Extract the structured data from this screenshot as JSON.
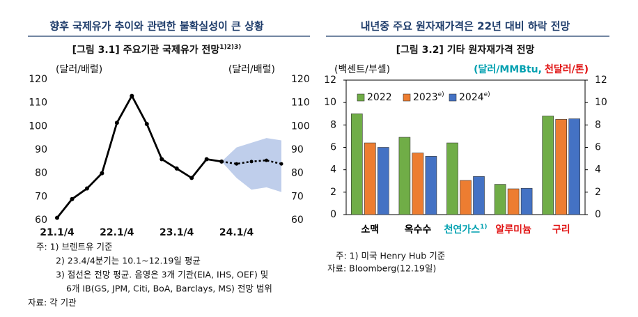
{
  "chart_data": [
    {
      "type": "line",
      "header": "향후 국제유가 추이와 관련한 불확실성이 큰 상황",
      "title": "[그림 3.1] 주요기관 국제유가 전망",
      "title_superscript": "1)2)3)",
      "y_label": "(달러/배럴)",
      "y2_label": "(달러/배럴)",
      "categories": [
        "21.1/4",
        null,
        null,
        null,
        "22.1/4",
        null,
        null,
        null,
        "23.1/4",
        null,
        null,
        null,
        "24.1/4",
        null,
        null,
        null
      ],
      "series": [
        {
          "color": "#000000",
          "dashed": false,
          "values": [
            61,
            69,
            73.5,
            80,
            101.5,
            113,
            101,
            86,
            82,
            78,
            86,
            85,
            null,
            null,
            null,
            null
          ]
        },
        {
          "color": "#000000",
          "dashed": true,
          "values": [
            null,
            null,
            null,
            null,
            null,
            null,
            null,
            null,
            null,
            null,
            null,
            85,
            84,
            85,
            85.5,
            84
          ]
        }
      ],
      "band": {
        "color": "#b4c6e7",
        "upper": [
          null,
          null,
          null,
          null,
          null,
          null,
          null,
          null,
          null,
          null,
          null,
          85,
          91,
          93,
          95,
          94
        ],
        "lower": [
          null,
          null,
          null,
          null,
          null,
          null,
          null,
          null,
          null,
          null,
          null,
          85,
          78,
          73,
          74,
          72
        ]
      },
      "ylim": [
        60,
        120
      ],
      "yticks": [
        60,
        70,
        80,
        90,
        100,
        110,
        120
      ],
      "y2lim": [
        60,
        120
      ],
      "y2ticks": [
        60,
        70,
        80,
        90,
        100,
        110,
        120
      ],
      "notes": [
        "주: 1) 브렌트유 기준",
        "2) 23.4/4분기는 10.1~12.19일 평균",
        "3) 점선은 전망 평균. 음영은 3개 기관(EIA, IHS, OEF) 및",
        "6개 IB(GS, JPM, Citi, BoA, Barclays, MS) 전망 범위",
        "자료: 각 기관"
      ]
    },
    {
      "type": "bar",
      "header": "내년중 주요 원자재가격은 22년 대비 하락 전망",
      "title": "[그림 3.2] 기타 원자재가격 전망",
      "y_label": "(백센트/부셀)",
      "y2_label": [
        {
          "text": "(달러/MMBtu,",
          "color": "#00a0b0"
        },
        {
          "text": "천달러/톤)",
          "color": "#e01010"
        }
      ],
      "categories": [
        "소맥",
        "옥수수",
        "천연가스",
        "알루미늄",
        "구리"
      ],
      "category_superscripts": [
        null,
        null,
        "1)",
        null,
        null
      ],
      "category_colors": [
        "#000000",
        "#000000",
        "#00a0b0",
        "#e01010",
        "#e01010"
      ],
      "series": [
        {
          "name": "2022",
          "color": "#70ad47",
          "values": [
            9.0,
            6.9,
            6.4,
            2.7,
            8.8
          ]
        },
        {
          "name": "2023",
          "name_superscript": "e)",
          "color": "#ed7d31",
          "values": [
            6.4,
            5.5,
            3.05,
            2.3,
            8.5
          ]
        },
        {
          "name": "2024",
          "name_superscript": "e)",
          "color": "#4472c4",
          "values": [
            6.0,
            5.2,
            3.4,
            2.35,
            8.55
          ]
        }
      ],
      "ylim": [
        0,
        12
      ],
      "yticks": [
        0,
        2,
        4,
        6,
        8,
        10,
        12
      ],
      "y2lim": [
        0,
        12
      ],
      "y2ticks": [
        0,
        2,
        4,
        6,
        8,
        10,
        12
      ],
      "notes": [
        "주: 1) 미국 Henry Hub 기준",
        "자료: Bloomberg(12.19일)"
      ]
    }
  ]
}
